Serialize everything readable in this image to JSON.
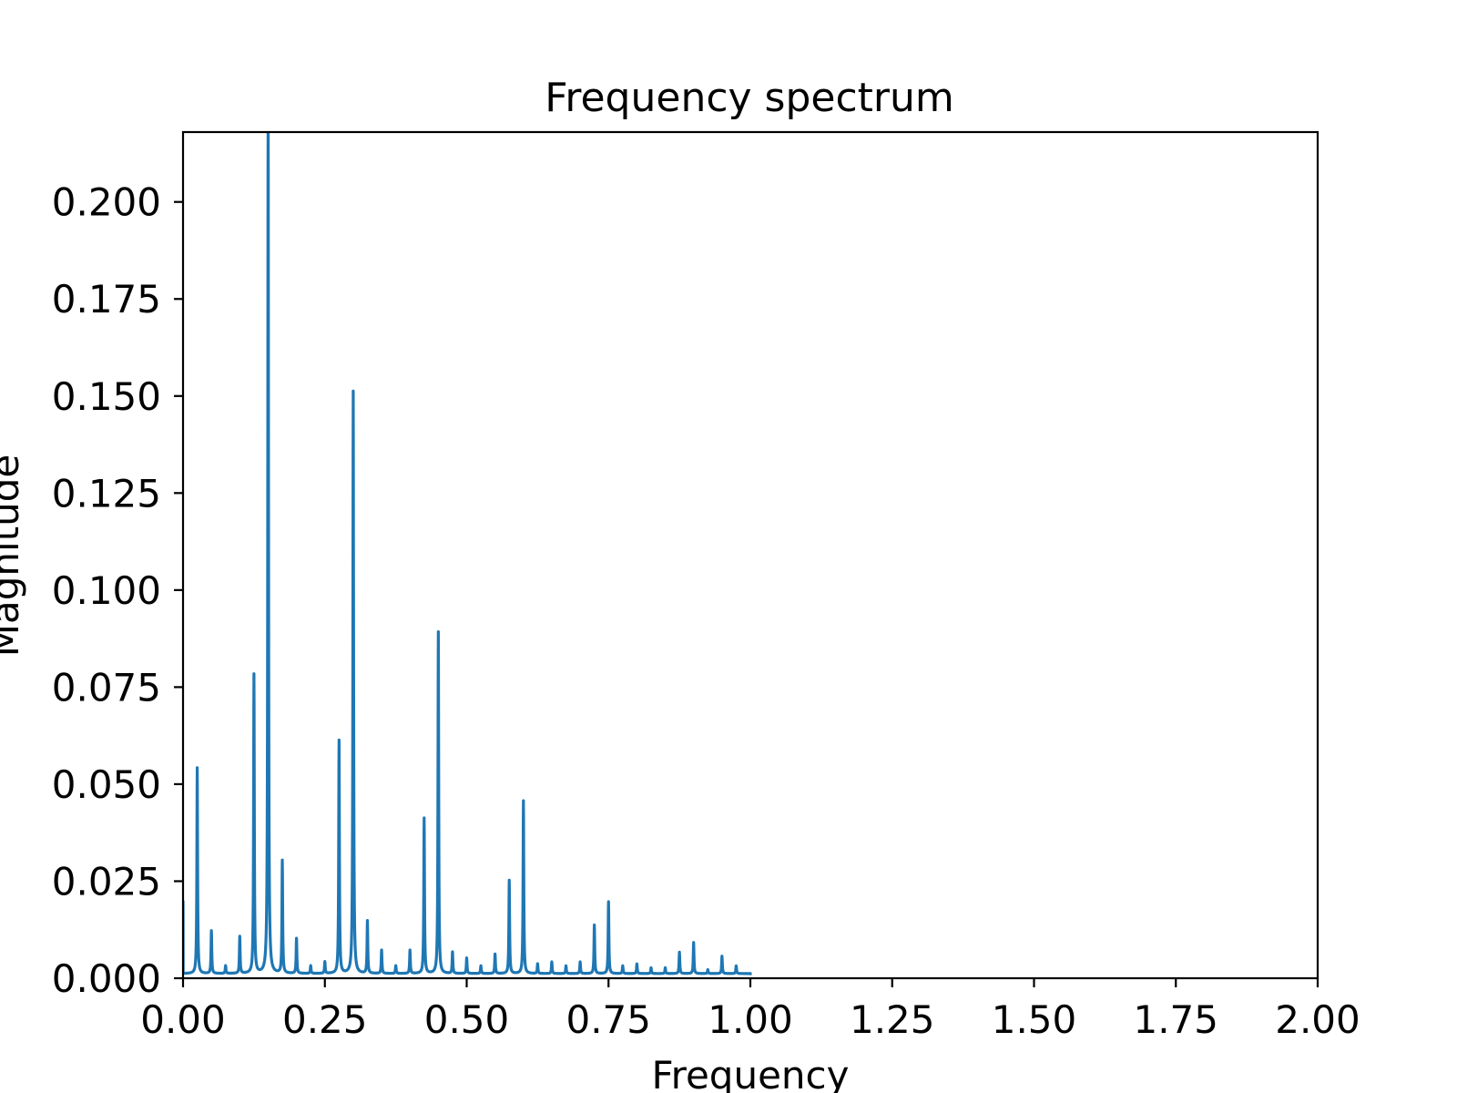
{
  "chart_data": {
    "type": "line",
    "title": "Frequency spectrum",
    "xlabel": "Frequency",
    "ylabel": "Magnitude",
    "xlim": [
      0,
      2
    ],
    "ylim": [
      0,
      0.218
    ],
    "xticks": [
      0,
      0.25,
      0.5,
      0.75,
      1.0,
      1.25,
      1.5,
      1.75,
      2.0
    ],
    "xtick_labels": [
      "0.00",
      "0.25",
      "0.50",
      "0.75",
      "1.00",
      "1.25",
      "1.50",
      "1.75",
      "2.00"
    ],
    "yticks": [
      0,
      0.025,
      0.05,
      0.075,
      0.1,
      0.125,
      0.15,
      0.175,
      0.2
    ],
    "ytick_labels": [
      "0.000",
      "0.025",
      "0.050",
      "0.075",
      "0.100",
      "0.125",
      "0.150",
      "0.175",
      "0.200"
    ],
    "grid": false,
    "series": [
      {
        "color": "#1f77b4",
        "x_range": [
          0,
          1.0
        ],
        "baseline": 0.0012,
        "peaks": [
          [
            0.025,
            0.053
          ],
          [
            0.05,
            0.011
          ],
          [
            0.075,
            0.002
          ],
          [
            0.1,
            0.0095
          ],
          [
            0.125,
            0.077
          ],
          [
            0.15,
            0.23
          ],
          [
            0.175,
            0.029
          ],
          [
            0.2,
            0.009
          ],
          [
            0.225,
            0.002
          ],
          [
            0.25,
            0.003
          ],
          [
            0.275,
            0.06
          ],
          [
            0.3,
            0.15
          ],
          [
            0.325,
            0.0135
          ],
          [
            0.35,
            0.006
          ],
          [
            0.375,
            0.002
          ],
          [
            0.4,
            0.006
          ],
          [
            0.425,
            0.04
          ],
          [
            0.45,
            0.088
          ],
          [
            0.475,
            0.0055
          ],
          [
            0.5,
            0.004
          ],
          [
            0.525,
            0.002
          ],
          [
            0.55,
            0.005
          ],
          [
            0.575,
            0.024
          ],
          [
            0.6,
            0.0445
          ],
          [
            0.625,
            0.0025
          ],
          [
            0.65,
            0.003
          ],
          [
            0.675,
            0.002
          ],
          [
            0.7,
            0.003
          ],
          [
            0.725,
            0.0125
          ],
          [
            0.75,
            0.0185
          ],
          [
            0.775,
            0.002
          ],
          [
            0.8,
            0.0025
          ],
          [
            0.825,
            0.0015
          ],
          [
            0.85,
            0.0015
          ],
          [
            0.875,
            0.0055
          ],
          [
            0.9,
            0.008
          ],
          [
            0.925,
            0.001
          ],
          [
            0.95,
            0.0045
          ],
          [
            0.975,
            0.002
          ]
        ]
      }
    ]
  }
}
